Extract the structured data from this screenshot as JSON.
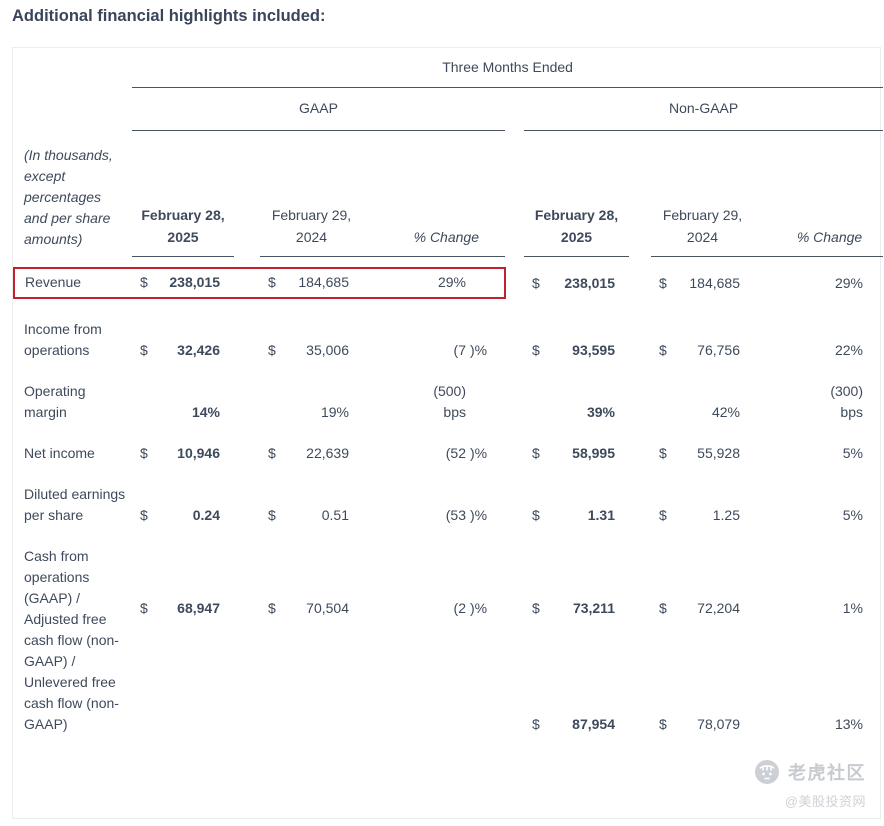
{
  "title": "Additional financial highlights included:",
  "table": {
    "period_header": "Three Months Ended",
    "gaap_header": "GAAP",
    "nongaap_header": "Non-GAAP",
    "note": "(In thousands, except percentages and per share amounts)",
    "col_2025_line1": "February 28,",
    "col_2025_line2": "2025",
    "col_2024_line1": "February 29,",
    "col_2024_line2": "2024",
    "col_change": "% Change",
    "rows": [
      {
        "label": "Revenue",
        "highlight": true,
        "gaap": {
          "cur1": "$",
          "v2025": "238,015",
          "cur2": "$",
          "v2024": "184,685",
          "chg": [
            [
              "29%",
              ""
            ]
          ]
        },
        "nongaap": {
          "cur1": "$",
          "v2025": "238,015",
          "cur2": "$",
          "v2024": "184,685",
          "chg": [
            [
              "29%",
              ""
            ]
          ]
        }
      },
      {
        "label": "Income from operations",
        "gaap": {
          "cur1": "$",
          "v2025": "32,426",
          "cur2": "$",
          "v2024": "35,006",
          "chg": [
            [
              "(7",
              ")%"
            ]
          ]
        },
        "nongaap": {
          "cur1": "$",
          "v2025": "93,595",
          "cur2": "$",
          "v2024": "76,756",
          "chg": [
            [
              "22%",
              ""
            ]
          ]
        }
      },
      {
        "label": "Operating margin",
        "gaap": {
          "cur1": "",
          "v2025": "14%",
          "cur2": "",
          "v2024": "19%",
          "chg": [
            [
              "(500)",
              ""
            ],
            [
              "bps",
              ""
            ]
          ]
        },
        "nongaap": {
          "cur1": "",
          "v2025": "39%",
          "cur2": "",
          "v2024": "42%",
          "chg": [
            [
              "(300)",
              ""
            ],
            [
              "bps",
              ""
            ]
          ]
        }
      },
      {
        "label": "Net income",
        "gaap": {
          "cur1": "$",
          "v2025": "10,946",
          "cur2": "$",
          "v2024": "22,639",
          "chg": [
            [
              "(52",
              ")%"
            ]
          ]
        },
        "nongaap": {
          "cur1": "$",
          "v2025": "58,995",
          "cur2": "$",
          "v2024": "55,928",
          "chg": [
            [
              "5%",
              ""
            ]
          ]
        }
      },
      {
        "label": "Diluted earnings per share",
        "gaap": {
          "cur1": "$",
          "v2025": "0.24",
          "cur2": "$",
          "v2024": "0.51",
          "chg": [
            [
              "(53",
              ")%"
            ]
          ]
        },
        "nongaap": {
          "cur1": "$",
          "v2025": "1.31",
          "cur2": "$",
          "v2024": "1.25",
          "chg": [
            [
              "5%",
              ""
            ]
          ]
        }
      },
      {
        "label": "Cash from operations (GAAP) / Adjusted free cash flow (non-GAAP) / Unlevered free cash flow (non-GAAP)",
        "dual": true,
        "gaap": {
          "cur1": "$",
          "v2025": "68,947",
          "cur2": "$",
          "v2024": "70,504",
          "chg": [
            [
              "(2",
              ")%"
            ]
          ]
        },
        "nongaap": {
          "cur1": "$",
          "v2025": "73,211",
          "cur2": "$",
          "v2024": "72,204",
          "chg": [
            [
              "1%",
              ""
            ]
          ]
        },
        "nongaap2": {
          "cur1": "$",
          "v2025": "87,954",
          "cur2": "$",
          "v2024": "78,079",
          "chg": [
            [
              "13%",
              ""
            ]
          ]
        }
      }
    ]
  },
  "highlight_color": "#c1202c",
  "watermark": {
    "brand": "老虎社区",
    "handle": "@美股投资网"
  }
}
